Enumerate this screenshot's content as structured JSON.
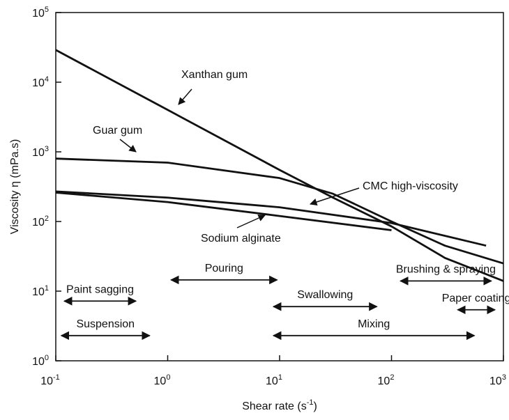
{
  "chart_data": {
    "type": "line",
    "log_x": true,
    "log_y": true,
    "color": "#111111",
    "x_label": "Shear rate (s^-1)",
    "y_label": "Viscosity η (mPa.s)",
    "xlim": [
      0.1,
      1000
    ],
    "ylim": [
      1,
      100000
    ],
    "xticks": [
      {
        "value": 0.1,
        "label": "10^-1"
      },
      {
        "value": 1,
        "label": "10^0"
      },
      {
        "value": 10,
        "label": "10^1"
      },
      {
        "value": 100,
        "label": "10^2"
      },
      {
        "value": 1000,
        "label": "10^3"
      }
    ],
    "yticks": [
      {
        "value": 1,
        "label": "10^0"
      },
      {
        "value": 10,
        "label": "10^1"
      },
      {
        "value": 100,
        "label": "10^2"
      },
      {
        "value": 1000,
        "label": "10^3"
      },
      {
        "value": 10000,
        "label": "10^4"
      },
      {
        "value": 100000,
        "label": "10^5"
      }
    ],
    "series": [
      {
        "name": "Xanthan gum",
        "x": [
          0.1,
          1,
          10,
          30,
          100,
          300,
          1000
        ],
        "values": [
          29000,
          4000,
          550,
          220,
          85,
          30,
          14
        ]
      },
      {
        "name": "Guar gum",
        "x": [
          0.1,
          1,
          10,
          30,
          100,
          300,
          1000
        ],
        "values": [
          800,
          700,
          420,
          250,
          100,
          45,
          25
        ]
      },
      {
        "name": "CMC high-viscosity",
        "x": [
          0.1,
          1,
          10,
          100,
          700
        ],
        "values": [
          270,
          220,
          160,
          95,
          45
        ]
      },
      {
        "name": "Sodium alginate",
        "x": [
          0.1,
          1,
          10,
          100
        ],
        "values": [
          260,
          190,
          120,
          75
        ]
      }
    ],
    "ranges": [
      {
        "label": "Paint sagging",
        "x": [
          0.119,
          0.52
        ],
        "y": 7.2
      },
      {
        "label": "Suspension",
        "x": [
          0.112,
          0.69
        ],
        "y": 2.3
      },
      {
        "label": "Pouring",
        "x": [
          1.07,
          9.5
        ],
        "y": 14.5
      },
      {
        "label": "Swallowing",
        "x": [
          8.8,
          74
        ],
        "y": 6
      },
      {
        "label": "Mixing",
        "x": [
          8.8,
          550
        ],
        "y": 2.3
      },
      {
        "label": "Brushing & spraying",
        "x": [
          120,
          780
        ],
        "y": 14
      },
      {
        "label": "Paper coating",
        "x": [
          390,
          840
        ],
        "y": 5.4
      }
    ]
  }
}
